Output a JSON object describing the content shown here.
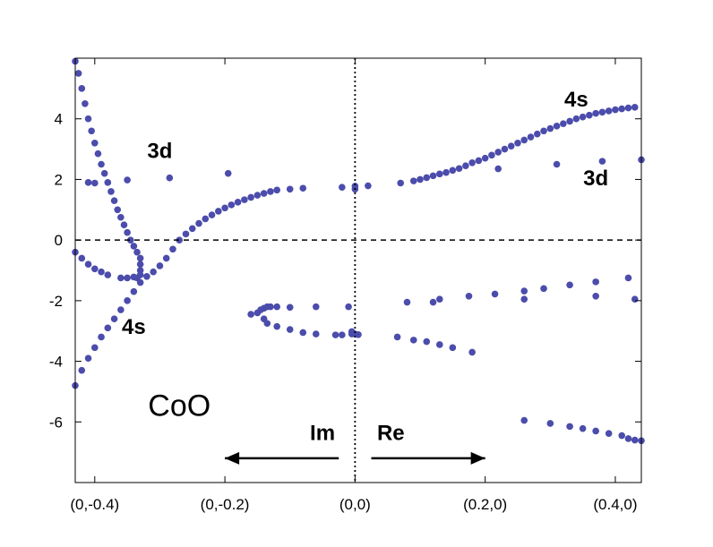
{
  "chart_data": {
    "type": "scatter",
    "title": "",
    "xlabel": "",
    "ylabel": "",
    "xlim": [
      -0.43,
      0.44
    ],
    "ylim": [
      -8.0,
      6.0
    ],
    "x_ticks": [
      {
        "value": -0.4,
        "label": "(0,-0.4)"
      },
      {
        "value": -0.2,
        "label": "(0,-0.2)"
      },
      {
        "value": 0.0,
        "label": "(0,0)"
      },
      {
        "value": 0.2,
        "label": "(0.2,0)"
      },
      {
        "value": 0.4,
        "label": "(0.4,0)"
      }
    ],
    "y_ticks": [
      {
        "value": 4,
        "label": "4"
      },
      {
        "value": 2,
        "label": "2"
      },
      {
        "value": 0,
        "label": "0"
      },
      {
        "value": -2,
        "label": "-2"
      },
      {
        "value": -4,
        "label": "-4"
      },
      {
        "value": -6,
        "label": "-6"
      }
    ],
    "reference_lines": [
      {
        "orientation": "horizontal",
        "value": 0,
        "style": "dashed"
      },
      {
        "orientation": "vertical",
        "value": 0,
        "style": "dotted"
      }
    ],
    "marker_color": "#4b4cab",
    "annotations": [
      {
        "text": "4s",
        "x": 0.34,
        "y": 4.4,
        "style": "bold"
      },
      {
        "text": "3d",
        "x": -0.3,
        "y": 2.7,
        "style": "bold"
      },
      {
        "text": "3d",
        "x": 0.37,
        "y": 1.8,
        "style": "bold"
      },
      {
        "text": "4s",
        "x": -0.34,
        "y": -3.1,
        "style": "bold"
      },
      {
        "text": "CoO",
        "x": -0.27,
        "y": -5.8,
        "style": "large"
      },
      {
        "text": "Im",
        "x": -0.05,
        "y": -6.6,
        "style": "bold"
      },
      {
        "text": "Re",
        "x": 0.055,
        "y": -6.6,
        "style": "bold"
      }
    ],
    "arrows": [
      {
        "from": [
          -0.025,
          -7.2
        ],
        "to": [
          -0.2,
          -7.2
        ]
      },
      {
        "from": [
          0.025,
          -7.2
        ],
        "to": [
          0.2,
          -7.2
        ]
      }
    ],
    "series": [
      {
        "name": "4s upper-right branch",
        "points": [
          [
            -0.27,
            0.0
          ],
          [
            -0.26,
            0.2
          ],
          [
            -0.25,
            0.38
          ],
          [
            -0.24,
            0.55
          ],
          [
            -0.23,
            0.7
          ],
          [
            -0.22,
            0.83
          ],
          [
            -0.21,
            0.95
          ],
          [
            -0.2,
            1.06
          ],
          [
            -0.19,
            1.16
          ],
          [
            -0.18,
            1.25
          ],
          [
            -0.17,
            1.33
          ],
          [
            -0.16,
            1.41
          ],
          [
            -0.15,
            1.48
          ],
          [
            -0.14,
            1.54
          ],
          [
            -0.13,
            1.6
          ],
          [
            -0.12,
            1.65
          ],
          [
            -0.1,
            1.68
          ],
          [
            -0.08,
            1.71
          ],
          [
            -0.02,
            1.74
          ],
          [
            0.0,
            1.78
          ],
          [
            0.02,
            1.79
          ],
          [
            0.07,
            1.88
          ],
          [
            0.09,
            1.95
          ],
          [
            0.1,
            2.0
          ],
          [
            0.11,
            2.06
          ],
          [
            0.12,
            2.12
          ],
          [
            0.13,
            2.18
          ],
          [
            0.14,
            2.23
          ],
          [
            0.15,
            2.3
          ],
          [
            0.16,
            2.36
          ],
          [
            0.17,
            2.45
          ],
          [
            0.18,
            2.55
          ],
          [
            0.19,
            2.62
          ],
          [
            0.2,
            2.7
          ],
          [
            0.21,
            2.8
          ],
          [
            0.22,
            2.9
          ],
          [
            0.23,
            3.0
          ],
          [
            0.24,
            3.1
          ],
          [
            0.25,
            3.2
          ],
          [
            0.26,
            3.3
          ],
          [
            0.27,
            3.4
          ],
          [
            0.28,
            3.5
          ],
          [
            0.29,
            3.6
          ],
          [
            0.3,
            3.68
          ],
          [
            0.31,
            3.76
          ],
          [
            0.32,
            3.84
          ],
          [
            0.33,
            3.92
          ],
          [
            0.34,
            4.0
          ],
          [
            0.35,
            4.06
          ],
          [
            0.36,
            4.12
          ],
          [
            0.37,
            4.18
          ],
          [
            0.38,
            4.22
          ],
          [
            0.39,
            4.26
          ],
          [
            0.4,
            4.3
          ],
          [
            0.41,
            4.33
          ],
          [
            0.42,
            4.36
          ],
          [
            0.43,
            4.38
          ]
        ]
      },
      {
        "name": "4s lower-left branch",
        "points": [
          [
            -0.28,
            -0.3
          ],
          [
            -0.29,
            -0.6
          ],
          [
            -0.3,
            -0.85
          ],
          [
            -0.31,
            -1.05
          ],
          [
            -0.32,
            -1.2
          ],
          [
            -0.33,
            -1.4
          ],
          [
            -0.34,
            -1.7
          ],
          [
            -0.35,
            -2.0
          ],
          [
            -0.36,
            -2.3
          ],
          [
            -0.37,
            -2.6
          ],
          [
            -0.38,
            -2.9
          ],
          [
            -0.39,
            -3.2
          ],
          [
            -0.4,
            -3.55
          ],
          [
            -0.41,
            -3.9
          ],
          [
            -0.42,
            -4.3
          ],
          [
            -0.43,
            -4.8
          ],
          [
            -0.435,
            -5.2
          ]
        ]
      },
      {
        "name": "3d steep branch",
        "points": [
          [
            -0.43,
            5.9
          ],
          [
            -0.425,
            5.5
          ],
          [
            -0.42,
            5.0
          ],
          [
            -0.415,
            4.5
          ],
          [
            -0.41,
            4.0
          ],
          [
            -0.405,
            3.6
          ],
          [
            -0.4,
            3.2
          ],
          [
            -0.395,
            2.85
          ],
          [
            -0.39,
            2.5
          ],
          [
            -0.385,
            2.2
          ],
          [
            -0.38,
            1.9
          ],
          [
            -0.375,
            1.6
          ],
          [
            -0.37,
            1.3
          ],
          [
            -0.365,
            1.0
          ],
          [
            -0.36,
            0.75
          ],
          [
            -0.355,
            0.5
          ],
          [
            -0.35,
            0.25
          ],
          [
            -0.345,
            0.0
          ],
          [
            -0.34,
            -0.2
          ],
          [
            -0.335,
            -0.4
          ],
          [
            -0.33,
            -0.6
          ],
          [
            -0.33,
            -0.8
          ],
          [
            -0.33,
            -1.0
          ],
          [
            -0.33,
            -1.15
          ],
          [
            -0.335,
            -1.25
          ]
        ]
      },
      {
        "name": "left low branch",
        "points": [
          [
            -0.43,
            -0.4
          ],
          [
            -0.42,
            -0.6
          ],
          [
            -0.41,
            -0.8
          ],
          [
            -0.4,
            -0.95
          ],
          [
            -0.39,
            -1.05
          ],
          [
            -0.38,
            -1.15
          ],
          [
            -0.36,
            -1.25
          ],
          [
            -0.35,
            -1.25
          ],
          [
            -0.34,
            -1.22
          ]
        ]
      },
      {
        "name": "3d scattered upper",
        "points": [
          [
            -0.41,
            1.9
          ],
          [
            -0.4,
            1.88
          ],
          [
            -0.35,
            1.98
          ],
          [
            -0.285,
            2.05
          ],
          [
            -0.195,
            2.2
          ],
          [
            0.0,
            1.68
          ],
          [
            0.22,
            2.35
          ],
          [
            0.31,
            2.5
          ],
          [
            0.38,
            2.6
          ],
          [
            0.44,
            2.65
          ]
        ]
      },
      {
        "name": "lower-middle left arc",
        "points": [
          [
            -0.16,
            -2.45
          ],
          [
            -0.15,
            -2.4
          ],
          [
            -0.145,
            -2.3
          ],
          [
            -0.14,
            -2.25
          ],
          [
            -0.135,
            -2.2
          ],
          [
            -0.13,
            -2.2
          ],
          [
            -0.12,
            -2.2
          ],
          [
            -0.1,
            -2.22
          ],
          [
            -0.06,
            -2.2
          ],
          [
            -0.01,
            -2.2
          ],
          [
            -0.14,
            -2.6
          ],
          [
            -0.135,
            -2.75
          ],
          [
            -0.12,
            -2.85
          ],
          [
            -0.1,
            -2.95
          ],
          [
            -0.08,
            -3.05
          ],
          [
            -0.06,
            -3.1
          ],
          [
            -0.03,
            -3.13
          ],
          [
            -0.02,
            -3.13
          ],
          [
            -0.005,
            -3.1
          ],
          [
            0.0,
            -3.1
          ],
          [
            0.005,
            -3.12
          ],
          [
            -0.005,
            -3.02
          ]
        ]
      },
      {
        "name": "lower right dots",
        "points": [
          [
            0.065,
            -3.2
          ],
          [
            0.09,
            -3.3
          ],
          [
            0.11,
            -3.35
          ],
          [
            0.13,
            -3.45
          ],
          [
            0.15,
            -3.55
          ],
          [
            0.18,
            -3.7
          ],
          [
            0.08,
            -2.05
          ],
          [
            0.12,
            -2.05
          ],
          [
            0.13,
            -1.95
          ],
          [
            0.175,
            -1.85
          ],
          [
            0.215,
            -1.78
          ],
          [
            0.26,
            -1.68
          ],
          [
            0.26,
            -1.95
          ],
          [
            0.29,
            -1.6
          ],
          [
            0.33,
            -1.48
          ],
          [
            0.37,
            -1.38
          ],
          [
            0.37,
            -1.85
          ],
          [
            0.42,
            -1.25
          ],
          [
            0.43,
            -1.95
          ]
        ]
      },
      {
        "name": "bottom right row",
        "points": [
          [
            0.26,
            -5.95
          ],
          [
            0.3,
            -6.05
          ],
          [
            0.33,
            -6.15
          ],
          [
            0.35,
            -6.22
          ],
          [
            0.37,
            -6.3
          ],
          [
            0.39,
            -6.38
          ],
          [
            0.41,
            -6.45
          ],
          [
            0.42,
            -6.55
          ],
          [
            0.43,
            -6.6
          ],
          [
            0.44,
            -6.62
          ]
        ]
      }
    ]
  }
}
